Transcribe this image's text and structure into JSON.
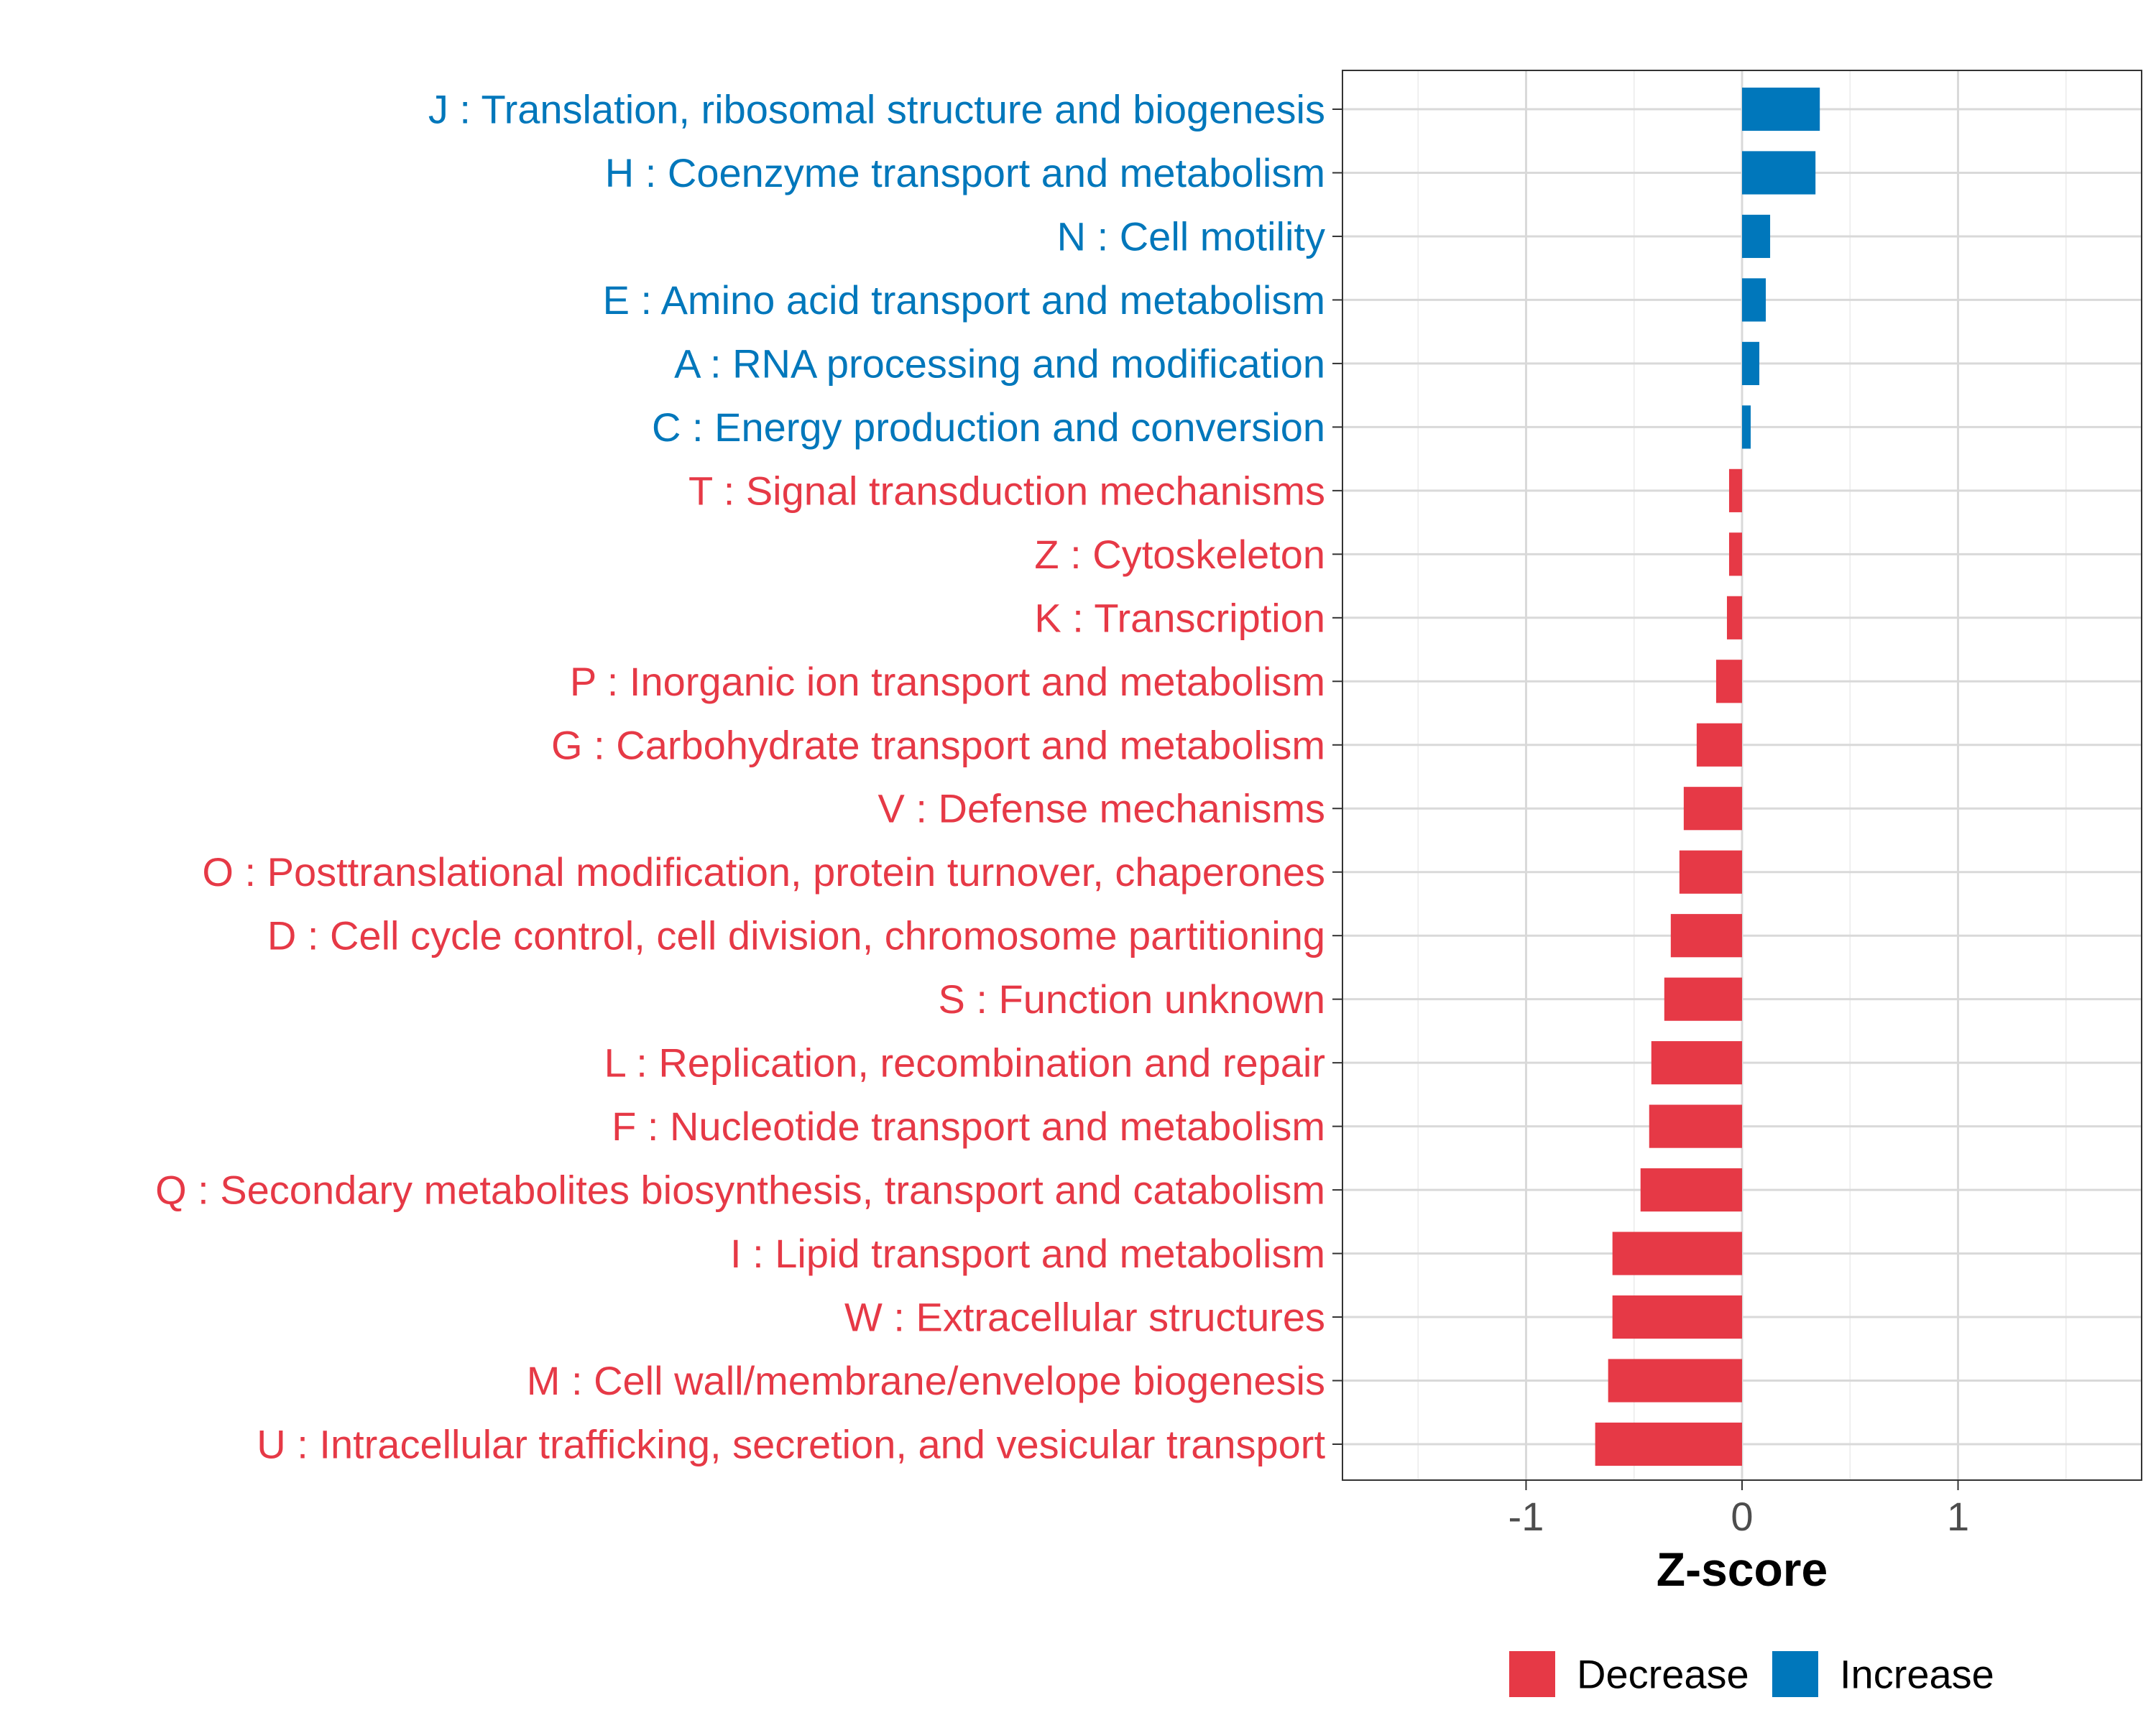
{
  "chart_data": {
    "type": "bar",
    "orientation": "horizontal",
    "xlabel": "Z-score",
    "ylabel": "",
    "xlim": [
      -1.85,
      1.85
    ],
    "x_ticks": [
      -1,
      0,
      1
    ],
    "x_tick_labels": [
      "-1",
      "0",
      "1"
    ],
    "grid": true,
    "legend_position": "bottom",
    "legend": [
      {
        "label": "Decrease",
        "color": "#E63946"
      },
      {
        "label": "Increase",
        "color": "#0077BB"
      }
    ],
    "categories": [
      "J : Translation, ribosomal structure and biogenesis",
      "H : Coenzyme transport and metabolism",
      "N : Cell motility",
      "E : Amino acid transport and metabolism",
      "A : RNA processing and modification",
      "C : Energy production and conversion",
      "T : Signal transduction mechanisms",
      "Z : Cytoskeleton",
      "K : Transcription",
      "P : Inorganic ion transport and metabolism",
      "G : Carbohydrate transport and metabolism",
      "V : Defense mechanisms",
      "O : Posttranslational modification, protein turnover, chaperones",
      "D : Cell cycle control, cell division, chromosome partitioning",
      "S : Function unknown",
      "L : Replication, recombination and repair",
      "F : Nucleotide transport and metabolism",
      "Q : Secondary metabolites biosynthesis, transport and catabolism",
      "I : Lipid transport and metabolism",
      "W : Extracellular structures",
      "M : Cell wall/membrane/envelope biogenesis",
      "U : Intracellular trafficking, secretion, and vesicular transport"
    ],
    "values": [
      0.36,
      0.34,
      0.13,
      0.11,
      0.08,
      0.04,
      -0.06,
      -0.06,
      -0.07,
      -0.12,
      -0.21,
      -0.27,
      -0.29,
      -0.33,
      -0.36,
      -0.42,
      -0.43,
      -0.47,
      -0.6,
      -0.6,
      -0.62,
      -0.68
    ],
    "groups": [
      "Increase",
      "Increase",
      "Increase",
      "Increase",
      "Increase",
      "Increase",
      "Decrease",
      "Decrease",
      "Decrease",
      "Decrease",
      "Decrease",
      "Decrease",
      "Decrease",
      "Decrease",
      "Decrease",
      "Decrease",
      "Decrease",
      "Decrease",
      "Decrease",
      "Decrease",
      "Decrease",
      "Decrease"
    ]
  }
}
